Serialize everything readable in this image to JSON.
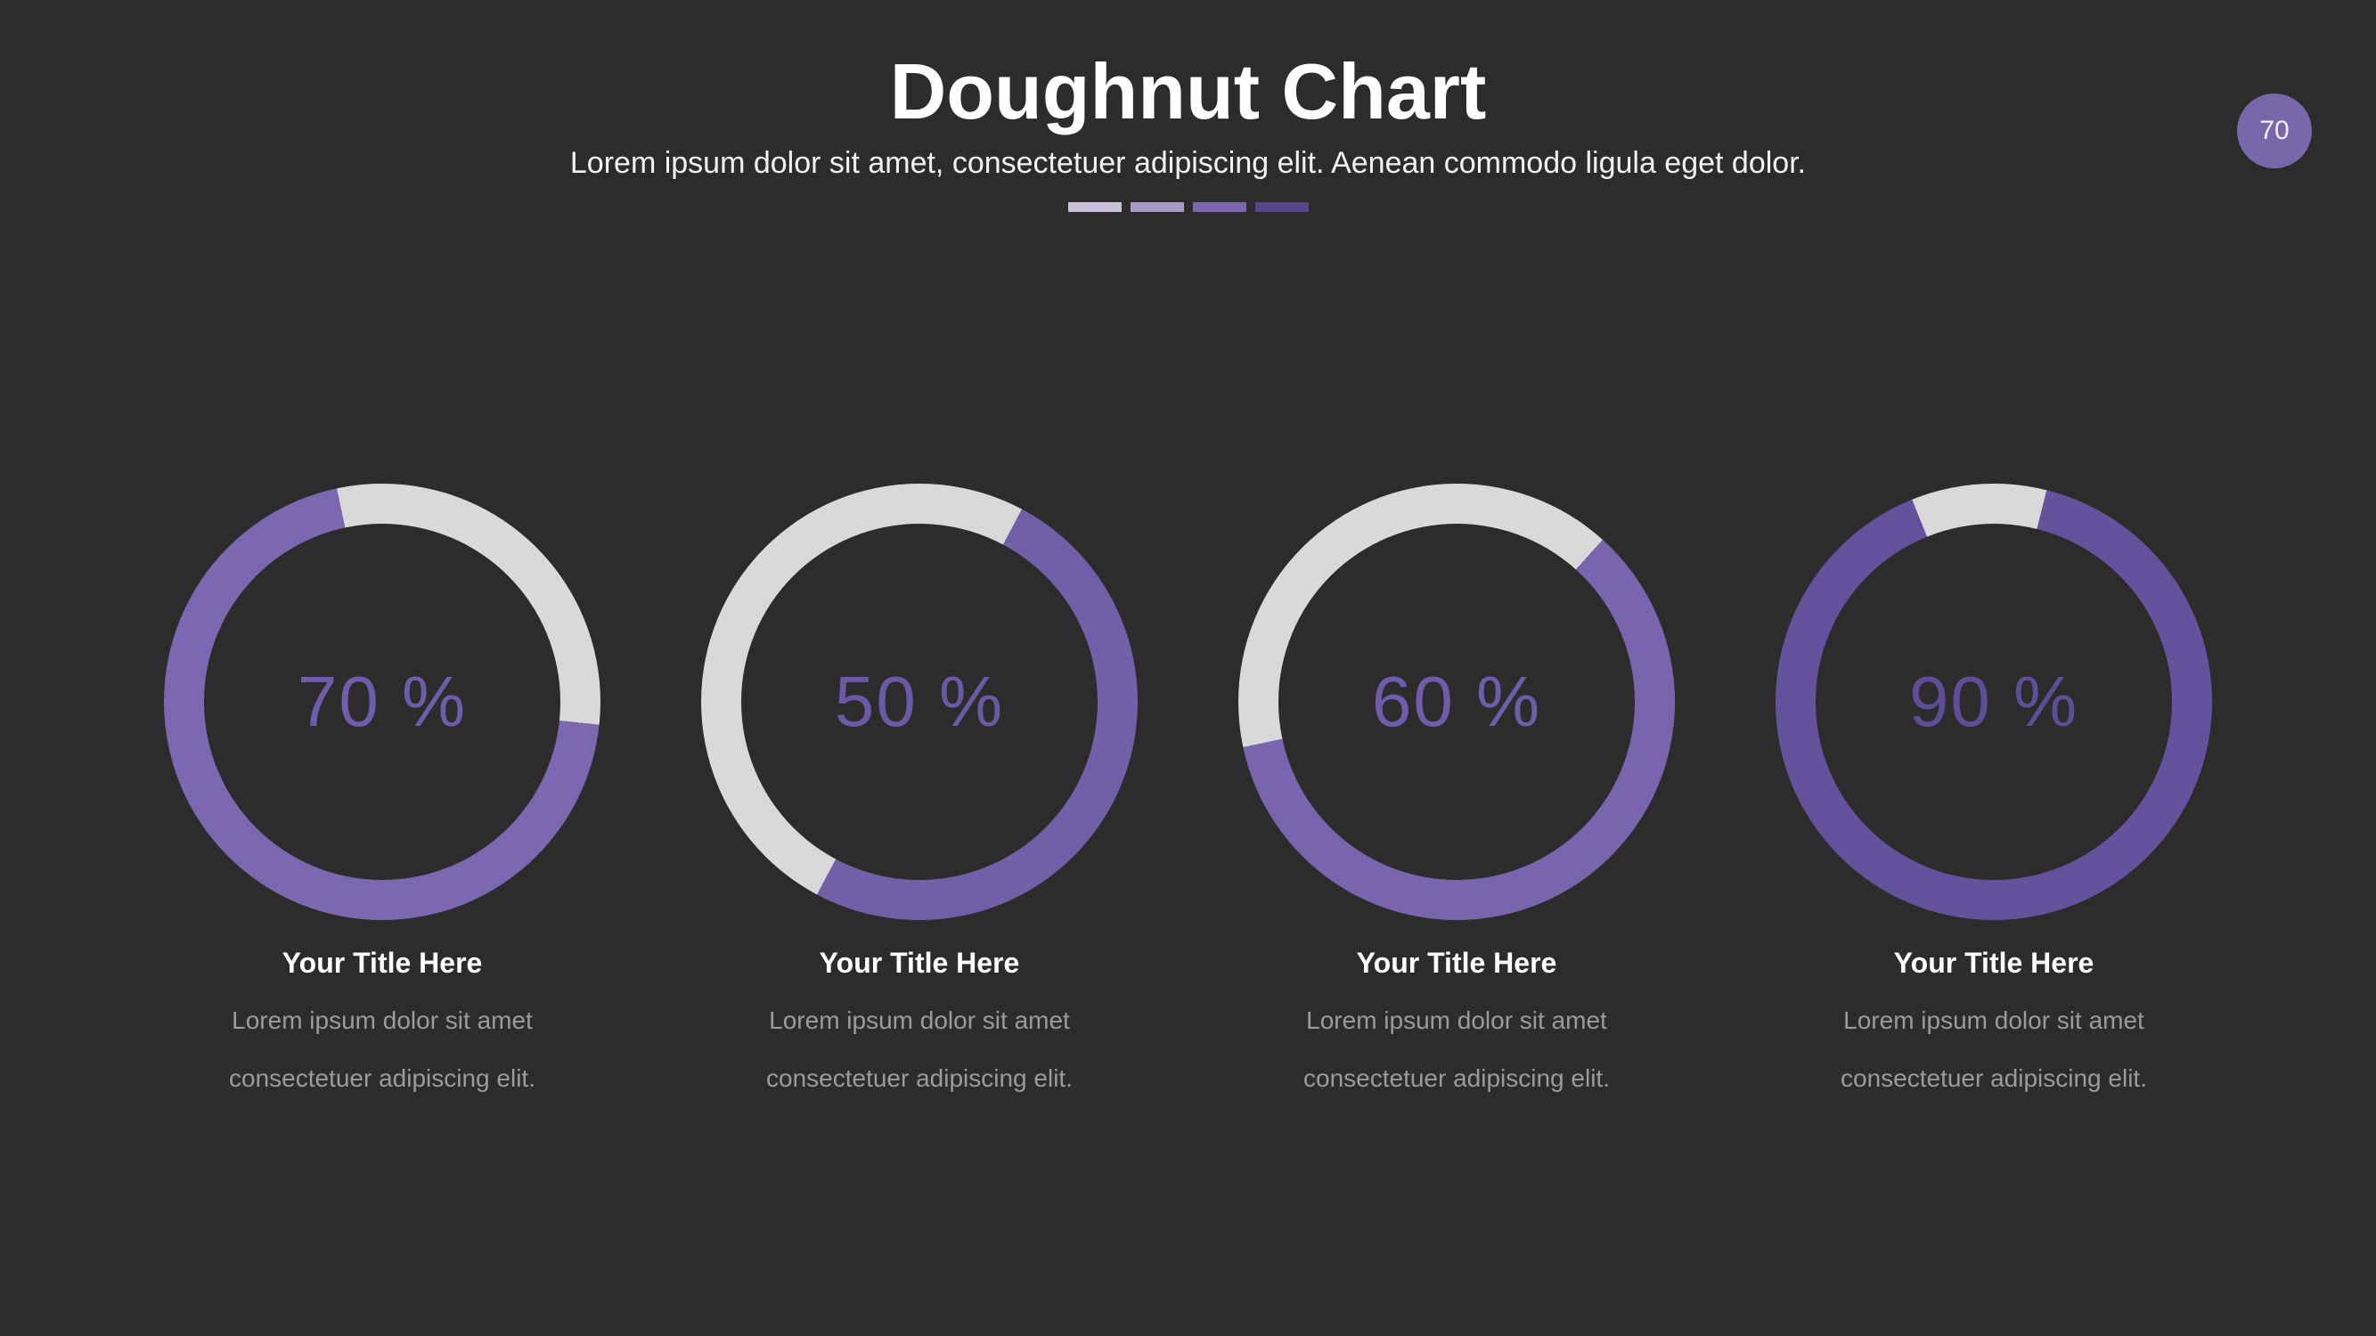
{
  "slide": {
    "title": "Doughnut Chart",
    "subtitle": "Lorem ipsum dolor sit amet, consectetuer adipiscing elit. Aenean commodo ligula eget dolor.",
    "page_badge": "70",
    "colors": {
      "background": "#2c2c2c",
      "track": "#d9d9d9",
      "badge": "#7668ab"
    },
    "divider_dashes": [
      "#c9c0dc",
      "#a79bc6",
      "#7c67ae",
      "#574689"
    ]
  },
  "chart_data": {
    "type": "pie",
    "variant": "doughnut",
    "title": "Doughnut Chart",
    "legend_position": "none",
    "charts": [
      {
        "percent": 70,
        "percent_label": "70 %",
        "title": "Your Title Here",
        "description": "Lorem ipsum dolor sit amet consectetuer adipiscing elit.",
        "ring_color": "#7b68b0",
        "text_color": "#6f5dab",
        "start_deg": 96
      },
      {
        "percent": 50,
        "percent_label": "50 %",
        "title": "Your Title Here",
        "description": "Lorem ipsum dolor sit amet consectetuer adipiscing elit.",
        "ring_color": "#7160a7",
        "text_color": "#6c59a6",
        "start_deg": 28
      },
      {
        "percent": 60,
        "percent_label": "60 %",
        "title": "Your Title Here",
        "description": "Lorem ipsum dolor sit amet consectetuer adipiscing elit.",
        "ring_color": "#7965ae",
        "text_color": "#6f5dab",
        "start_deg": 42
      },
      {
        "percent": 90,
        "percent_label": "90 %",
        "title": "Your Title Here",
        "description": "Lorem ipsum dolor sit amet consectetuer adipiscing elit.",
        "ring_color": "#64529d",
        "text_color": "#5f4e97",
        "start_deg": 14
      }
    ]
  }
}
